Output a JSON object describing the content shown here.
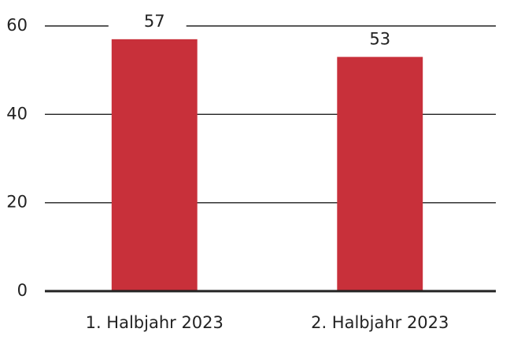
{
  "chart_data": {
    "type": "bar",
    "categories": [
      "1. Halbjahr 2023",
      "2. Halbjahr 2023"
    ],
    "values": [
      57,
      53
    ],
    "color": "#c8303a",
    "ylim": [
      0,
      60
    ],
    "yticks": [
      0,
      20,
      40,
      60
    ],
    "grid": true
  }
}
